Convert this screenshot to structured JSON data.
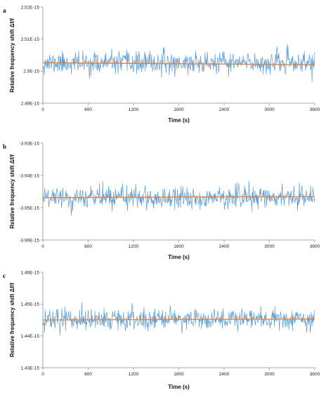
{
  "chart_data": [
    {
      "type": "line",
      "panel_label": "a",
      "xlabel": "Time (s)",
      "ylabel": "Relative frequency shift Δf/f",
      "xlim": [
        0,
        3600
      ],
      "ylim": [
        2.49e-15,
        2.52e-15
      ],
      "x_ticks": [
        "0",
        "600",
        "1200",
        "1800",
        "2400",
        "3000",
        "3600"
      ],
      "y_ticks": [
        "2.52E-15",
        "2.51E-15",
        "2.5E-15",
        "2.49E-15"
      ],
      "grid": false,
      "series": [
        {
          "color": "#5b9bd5",
          "mean": 2.5025e-15,
          "noise_sd": 1.7e-18,
          "sample_interval_s": 6,
          "seed": 11
        },
        {
          "color": "#ed7d31",
          "kind": "trend",
          "x": [
            0,
            3600
          ],
          "y": [
            2.5026e-15,
            2.502e-15
          ]
        }
      ]
    },
    {
      "type": "line",
      "panel_label": "b",
      "xlabel": "Time (s)",
      "ylabel": "Relative frequency shift Δf/f",
      "xlim": [
        0,
        3600
      ],
      "ylim": [
        -3.96e-15,
        -3.93e-15
      ],
      "x_ticks": [
        "0",
        "600",
        "1200",
        "1800",
        "2400",
        "3000",
        "3600"
      ],
      "y_ticks": [
        "-3.93E-15",
        "-3.94E-15",
        "-3.95E-15",
        "-3.96E-15"
      ],
      "grid": false,
      "series": [
        {
          "color": "#5b9bd5",
          "mean": -3.9468e-15,
          "noise_sd": 1.7e-18,
          "sample_interval_s": 6,
          "seed": 29
        },
        {
          "color": "#ed7d31",
          "kind": "trend",
          "x": [
            0,
            3600
          ],
          "y": [
            -3.9469e-15,
            -3.9465e-15
          ]
        }
      ]
    },
    {
      "type": "line",
      "panel_label": "c",
      "xlabel": "Time (s)",
      "ylabel": "Relative frequency shift Δf/f",
      "xlim": [
        0,
        3600
      ],
      "ylim": [
        1.43e-15,
        1.46e-15
      ],
      "x_ticks": [
        "0",
        "600",
        "1200",
        "1800",
        "2400",
        "3000",
        "3600"
      ],
      "y_ticks": [
        "1.46E-15",
        "1.45E-15",
        "1.44E-15",
        "1.43E-15"
      ],
      "grid": false,
      "series": [
        {
          "color": "#5b9bd5",
          "mean": 1.4452e-15,
          "noise_sd": 1.7e-18,
          "sample_interval_s": 6,
          "seed": 47
        },
        {
          "color": "#ed7d31",
          "kind": "trend",
          "x": [
            0,
            3600
          ],
          "y": [
            1.445e-15,
            1.4453e-15
          ]
        }
      ]
    }
  ]
}
